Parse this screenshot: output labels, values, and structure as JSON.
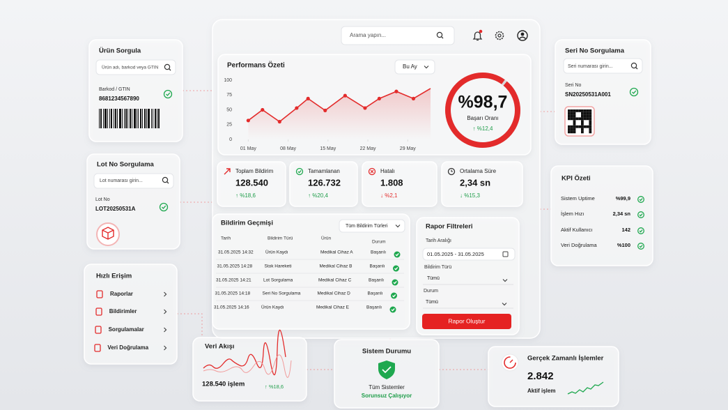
{
  "search": {
    "placeholder": "Arama yapın..."
  },
  "performance": {
    "title": "Performans Özeti",
    "period": "Bu Ay",
    "chart": {
      "type": "line",
      "x": [
        1,
        3.5,
        6.5,
        9.5,
        11.5,
        14.5,
        18,
        21.5,
        24,
        27,
        30,
        33
      ],
      "xlim": [
        -1,
        33
      ],
      "xticks": [
        {
          "value": 1,
          "label": "01 May"
        },
        {
          "value": 8,
          "label": "08 May"
        },
        {
          "value": 15,
          "label": "15 May"
        },
        {
          "value": 22,
          "label": "22 May"
        },
        {
          "value": 29,
          "label": "29 May"
        }
      ],
      "ylim": [
        0,
        100
      ],
      "yticks": [
        0,
        25,
        50,
        75,
        100
      ],
      "series": [
        {
          "color": "#e32b2b",
          "values": [
            32,
            50,
            30,
            53,
            69,
            49,
            74,
            53,
            69,
            81,
            69,
            86
          ]
        }
      ]
    },
    "success": {
      "value": 98.7,
      "label": "%98,7",
      "caption": "Başarı Oranı",
      "change": "↑ %12,4"
    }
  },
  "stats": [
    {
      "label": "Toplam Bildirim",
      "value": "128.540",
      "change": "↑ %18,6"
    },
    {
      "label": "Tamamlanan",
      "value": "126.732",
      "change": "↑ %20,4"
    },
    {
      "label": "Hatalı",
      "value": "1.808",
      "change": "↓ %2,1"
    },
    {
      "label": "Ortalama Süre",
      "value": "2,34 sn",
      "change": "↓ %15,3"
    }
  ],
  "history": {
    "title": "Bildirim Geçmişi",
    "filter": "Tüm Bildirim Türleri",
    "columns": [
      "Tarih",
      "Bildirim Türü",
      "Ürün",
      "Durum"
    ],
    "rows": [
      [
        "31.05.2025 14:32",
        "Ürün Kaydı",
        "Medikal Cihaz A",
        "Başarılı"
      ],
      [
        "31.05.2025 14:28",
        "Stok Hareketi",
        "Medikal Cihaz B",
        "Başarılı"
      ],
      [
        "31.05.2025 14:21",
        "Lot Sorgulama",
        "Medikal Cihaz C",
        "Başarılı"
      ],
      [
        "31.05.2025 14:18",
        "Seri No Sorgulama",
        "Medikal Cihaz D",
        "Başarılı"
      ],
      [
        "31.05.2025 14:16",
        "Ürün Kaydı",
        "Medikal Cihaz E",
        "Başarılı"
      ]
    ]
  },
  "report": {
    "title": "Rapor Filtreleri",
    "date_label": "Tarih Aralığı",
    "date_value": "01.05.2025 - 31.05.2025",
    "type_label": "Bildirim Türü",
    "type_value": "Tümü",
    "status_label": "Durum",
    "status_value": "Tümü",
    "button": "Rapor Oluştur"
  },
  "product": {
    "title": "Ürün Sorgula",
    "placeholder": "Ürün adı, barkod veya GTIN",
    "label": "Barkod / GTIN",
    "value": "8681234567890"
  },
  "lot": {
    "title": "Lot No Sorgulama",
    "placeholder": "Lot numarası girin...",
    "label": "Lot No",
    "value": "LOT20250531A"
  },
  "quick": {
    "title": "Hızlı Erişim",
    "items": [
      "Raporlar",
      "Bildirimler",
      "Sorgulamalar",
      "Veri Doğrulama"
    ]
  },
  "serial": {
    "title": "Seri No Sorgulama",
    "placeholder": "Seri numarası girin...",
    "label": "Seri No",
    "value": "SN20250531A001"
  },
  "kpi": {
    "title": "KPI Özeti",
    "rows": [
      [
        "Sistem Uptime",
        "%99,9"
      ],
      [
        "İşlem Hızı",
        "2,34 sn"
      ],
      [
        "Aktif Kullanıcı",
        "142"
      ],
      [
        "Veri Doğrulama",
        "%100"
      ]
    ]
  },
  "flow": {
    "title": "Veri Akışı",
    "value": "128.540 işlem",
    "change": "↑ %18,6"
  },
  "status": {
    "title": "Sistem Durumu",
    "line1": "Tüm Sistemler",
    "line2": "Sorunsuz Çalışıyor"
  },
  "realtime": {
    "title": "Gerçek Zamanlı İşlemler",
    "value": "2.842",
    "caption": "Aktif işlem"
  }
}
